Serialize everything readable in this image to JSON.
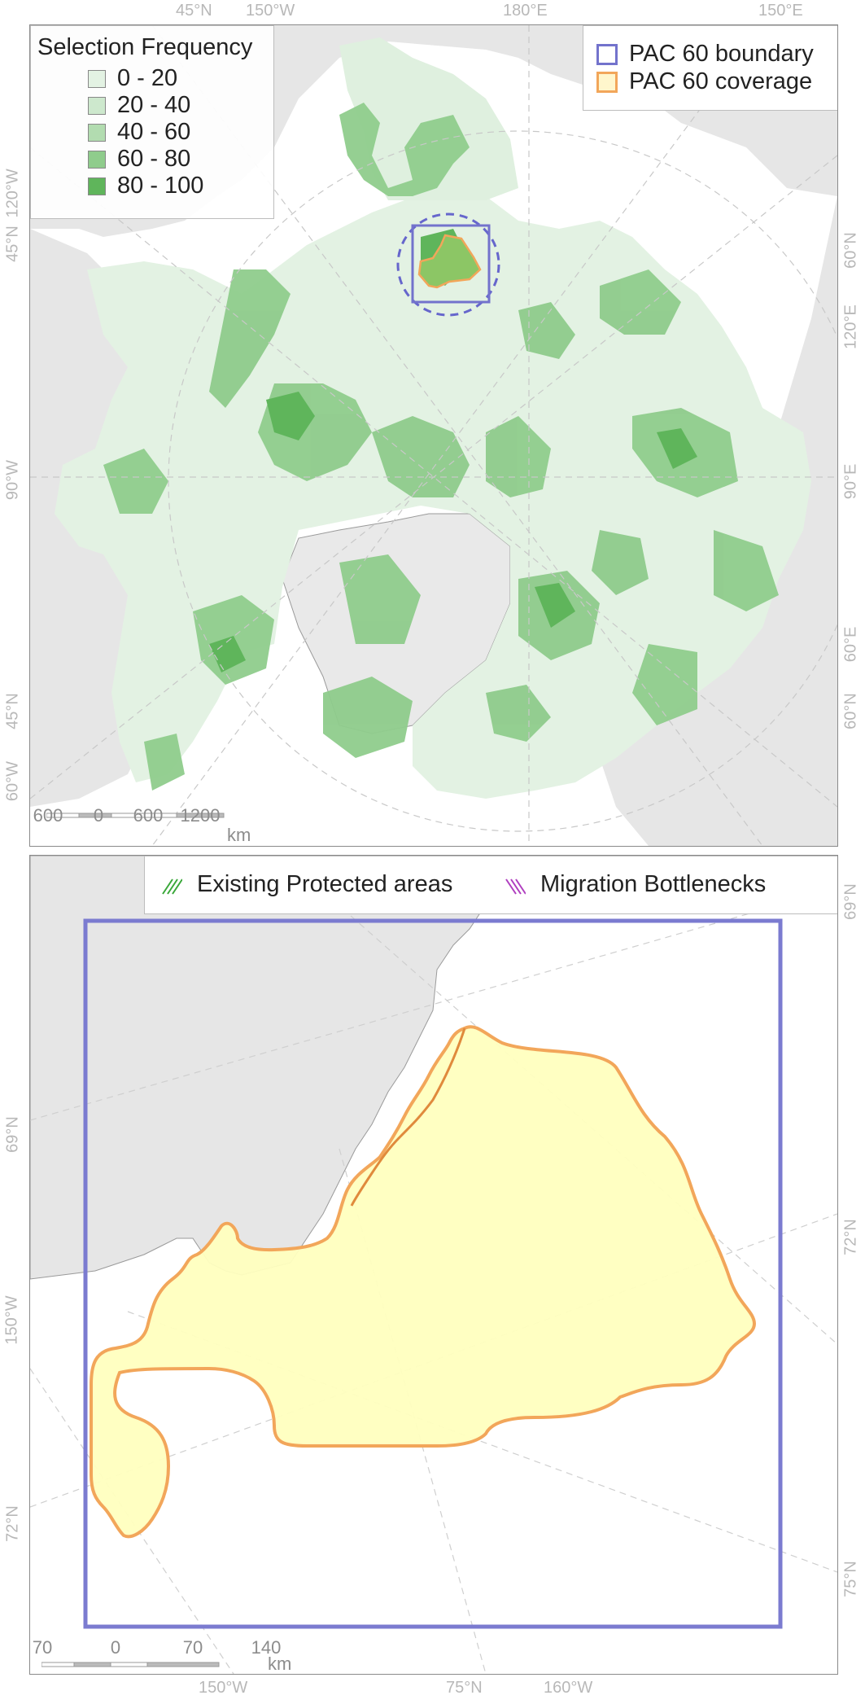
{
  "top_map": {
    "legend": {
      "title": "Selection Frequency",
      "classes": [
        {
          "label": "0 - 20",
          "color": "#e3f2e3"
        },
        {
          "label": "20 - 40",
          "color": "#cde8cd"
        },
        {
          "label": "40 - 60",
          "color": "#b2dcb0"
        },
        {
          "label": "60 - 80",
          "color": "#8fcc8c"
        },
        {
          "label": "80 - 100",
          "color": "#5fb55b"
        }
      ]
    },
    "pac_legend": {
      "boundary_label": "PAC 60 boundary",
      "boundary_color": "#7373cc",
      "coverage_label": "PAC 60 coverage",
      "coverage_color": "#f2a65a"
    },
    "graticule_labels": {
      "top": [
        "45°N",
        "150°W",
        "180°E",
        "150°E"
      ],
      "left": [
        "120°W",
        "45°N",
        "90°W",
        "45°N",
        "60°W"
      ],
      "right": [
        "60°N",
        "120°E",
        "90°E",
        "60°E",
        "60°N"
      ]
    },
    "scale_bar": {
      "ticks": [
        "600",
        "0",
        "600",
        "1200"
      ],
      "unit": "km"
    }
  },
  "bottom_map": {
    "legend": {
      "existing_label": "Existing Protected areas",
      "existing_color": "#3aa83a",
      "migration_label": "Migration Bottlenecks",
      "migration_color": "#b040c0"
    },
    "graticule_labels": {
      "bottom": [
        "150°W",
        "75°N",
        "160°W"
      ],
      "left": [
        "69°N",
        "150°W",
        "72°N"
      ],
      "right": [
        "69°N",
        "72°N",
        "75°N"
      ]
    },
    "scale_bar": {
      "ticks": [
        "70",
        "0",
        "70",
        "140"
      ],
      "unit": "km"
    }
  }
}
